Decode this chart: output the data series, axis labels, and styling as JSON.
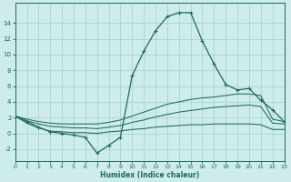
{
  "xlabel": "Humidex (Indice chaleur)",
  "xlim": [
    0,
    23
  ],
  "ylim": [
    -3.5,
    16.5
  ],
  "yticks": [
    -2,
    0,
    2,
    4,
    6,
    8,
    10,
    12,
    14
  ],
  "xticks": [
    0,
    1,
    2,
    3,
    4,
    5,
    6,
    7,
    8,
    9,
    10,
    11,
    12,
    13,
    14,
    15,
    16,
    17,
    18,
    19,
    20,
    21,
    22,
    23
  ],
  "bg_color": "#ceecea",
  "grid_color": "#a8d5d2",
  "line_color": "#1a6b5e",
  "main_line_x": [
    0,
    1,
    2,
    3,
    4,
    5,
    6,
    7,
    8,
    9,
    10,
    11,
    12,
    13,
    14,
    15,
    16,
    17,
    18,
    19,
    20,
    21,
    22,
    23
  ],
  "main_line_y": [
    2.2,
    1.5,
    0.8,
    0.2,
    0.0,
    -0.2,
    -0.5,
    -2.5,
    -1.5,
    -0.5,
    7.3,
    10.4,
    13.0,
    14.8,
    15.3,
    15.3,
    11.7,
    8.8,
    6.2,
    5.5,
    5.7,
    4.2,
    3.0,
    1.5
  ],
  "upper_line_x": [
    0,
    1,
    2,
    3,
    4,
    5,
    6,
    7,
    8,
    9,
    10,
    11,
    12,
    13,
    14,
    15,
    16,
    17,
    18,
    19,
    20,
    21,
    22,
    23
  ],
  "upper_line_y": [
    2.2,
    1.8,
    1.5,
    1.3,
    1.2,
    1.2,
    1.2,
    1.2,
    1.4,
    1.7,
    2.2,
    2.7,
    3.2,
    3.7,
    4.0,
    4.3,
    4.5,
    4.6,
    4.8,
    5.0,
    5.0,
    4.8,
    1.8,
    1.5
  ],
  "mid_line_x": [
    0,
    1,
    2,
    3,
    4,
    5,
    6,
    7,
    8,
    9,
    10,
    11,
    12,
    13,
    14,
    15,
    16,
    17,
    18,
    19,
    20,
    21,
    22,
    23
  ],
  "mid_line_y": [
    2.2,
    1.6,
    1.2,
    0.9,
    0.8,
    0.7,
    0.7,
    0.6,
    0.8,
    1.0,
    1.4,
    1.7,
    2.1,
    2.4,
    2.7,
    2.9,
    3.1,
    3.3,
    3.4,
    3.5,
    3.6,
    3.4,
    1.3,
    1.2
  ],
  "low_line_x": [
    0,
    23
  ],
  "low_line_y": [
    2.2,
    1.5
  ],
  "lower_flat_x": [
    0,
    1,
    2,
    3,
    4,
    5,
    6,
    7,
    8,
    9,
    10,
    11,
    12,
    13,
    14,
    15,
    16,
    17,
    18,
    19,
    20,
    21,
    22,
    23
  ],
  "lower_flat_y": [
    2.2,
    1.3,
    0.7,
    0.3,
    0.2,
    0.1,
    0.1,
    0.0,
    0.2,
    0.3,
    0.5,
    0.6,
    0.8,
    0.9,
    1.0,
    1.1,
    1.1,
    1.2,
    1.2,
    1.2,
    1.2,
    1.1,
    0.5,
    0.5
  ]
}
